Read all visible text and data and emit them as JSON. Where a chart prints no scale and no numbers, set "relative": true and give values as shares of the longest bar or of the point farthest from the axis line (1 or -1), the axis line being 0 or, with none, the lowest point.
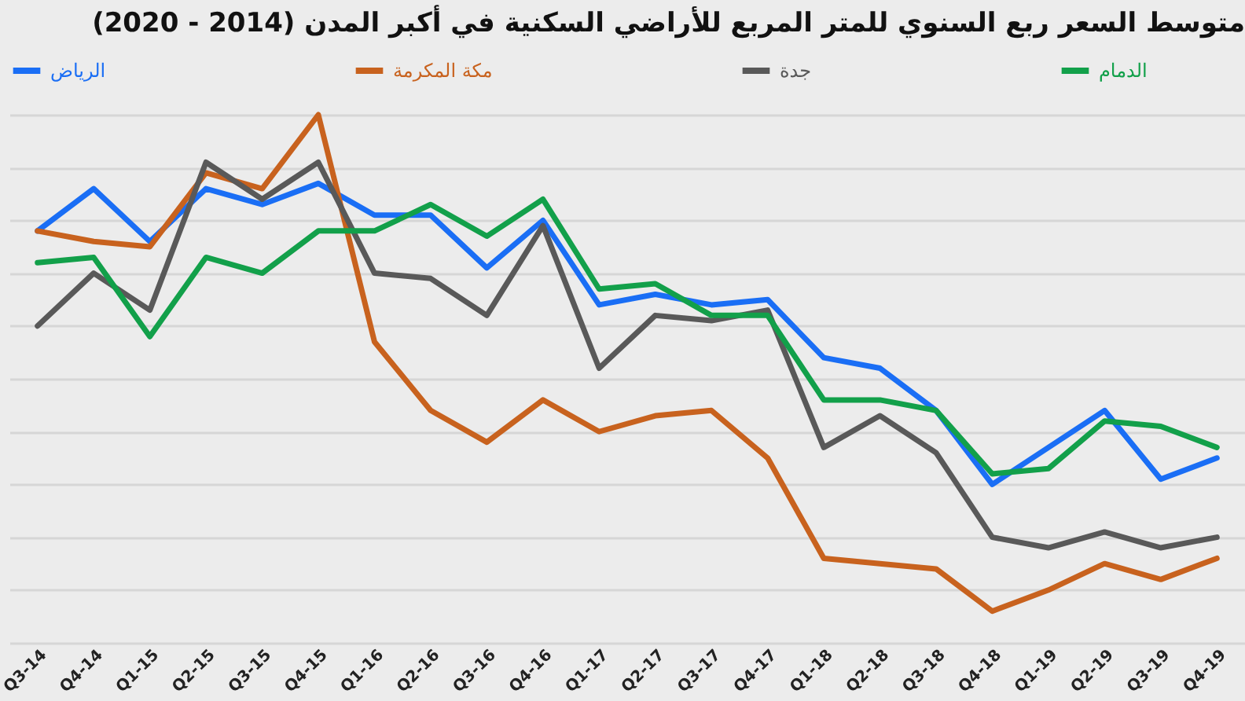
{
  "chart_data": {
    "type": "line",
    "title": "متوسط السعر ربع السنوي للمتر المربع للأراضي السكنية في أكبر المدن (2014 - 2020)",
    "relative": true,
    "grid": "y",
    "legend": "top",
    "marker": "none",
    "line_style": "solid",
    "categories": [
      "Q3-14",
      "Q4-14",
      "Q1-15",
      "Q2-15",
      "Q3-15",
      "Q4-15",
      "Q1-16",
      "Q2-16",
      "Q3-16",
      "Q4-16",
      "Q1-17",
      "Q2-17",
      "Q3-17",
      "Q4-17",
      "Q1-18",
      "Q2-18",
      "Q3-18",
      "Q4-18",
      "Q1-19",
      "Q2-19",
      "Q3-19",
      "Q4-19"
    ],
    "series": [
      {
        "name": "الرياض",
        "color": "#1a6ef5",
        "values": [
          0.78,
          0.86,
          0.76,
          0.86,
          0.83,
          0.87,
          0.81,
          0.81,
          0.71,
          0.8,
          0.64,
          0.66,
          0.64,
          0.65,
          0.54,
          0.52,
          0.44,
          0.3,
          0.37,
          0.44,
          0.31,
          0.35
        ]
      },
      {
        "name": "مكة المكرمة",
        "color": "#c8621e",
        "values": [
          0.78,
          0.76,
          0.75,
          0.89,
          0.86,
          1.0,
          0.57,
          0.44,
          0.38,
          0.46,
          0.4,
          0.43,
          0.44,
          0.35,
          0.16,
          0.15,
          0.14,
          0.06,
          0.1,
          0.15,
          0.12,
          0.16
        ]
      },
      {
        "name": "جدة",
        "color": "#595959",
        "values": [
          0.6,
          0.7,
          0.63,
          0.91,
          0.84,
          0.91,
          0.7,
          0.69,
          0.62,
          0.79,
          0.52,
          0.62,
          0.61,
          0.63,
          0.37,
          0.43,
          0.36,
          0.2,
          0.18,
          0.21,
          0.18,
          0.2
        ]
      },
      {
        "name": "الدمام",
        "color": "#12a04a",
        "values": [
          0.72,
          0.73,
          0.58,
          0.73,
          0.7,
          0.78,
          0.78,
          0.83,
          0.77,
          0.84,
          0.67,
          0.68,
          0.62,
          0.62,
          0.46,
          0.46,
          0.44,
          0.32,
          0.33,
          0.42,
          0.41,
          0.37
        ]
      }
    ]
  }
}
